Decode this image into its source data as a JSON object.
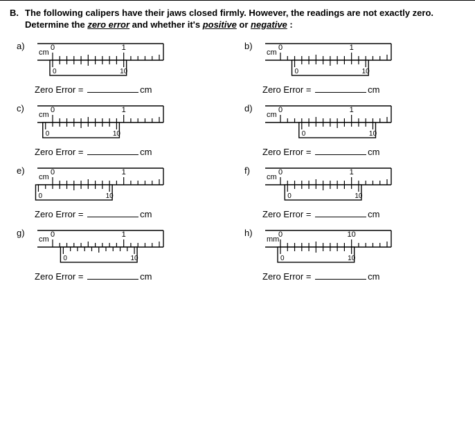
{
  "section_letter": "B.",
  "question_text_1": "The following calipers have their jaws closed firmly. However, the readings are not exactly zero.",
  "question_text_2": "Determine the ",
  "question_ul_1": "zero error",
  "question_text_3": " and whether it's ",
  "question_ul_2": "positive",
  "question_text_4": " or ",
  "question_ul_3": "negative",
  "question_text_5": " :",
  "answer_prefix": "Zero Error =",
  "items": [
    {
      "label": "a)",
      "main_scale": {
        "unit": "cm",
        "start": 0,
        "end": 1.5,
        "numbers": [
          "0",
          "1"
        ],
        "number_pos": [
          0,
          1
        ]
      },
      "vernier": {
        "offset_mm": 0.0,
        "length_mm": 1.0,
        "numbers": [
          "0",
          "10"
        ],
        "number_pos": [
          0,
          10
        ]
      },
      "answer_unit": "cm",
      "caliper_width": 190,
      "caliper_height": 58,
      "colors": {
        "stroke": "#000000",
        "fill": "#ffffff"
      }
    },
    {
      "label": "b)",
      "main_scale": {
        "unit": "cm",
        "start": 0,
        "end": 1.5,
        "numbers": [
          "0",
          "1"
        ],
        "number_pos": [
          0,
          1
        ]
      },
      "vernier": {
        "offset_mm": 0.2,
        "length_mm": 1.0,
        "numbers": [
          "0",
          "10"
        ],
        "number_pos": [
          0,
          10
        ]
      },
      "answer_unit": "cm",
      "caliper_width": 190,
      "caliper_height": 58,
      "colors": {
        "stroke": "#000000",
        "fill": "#ffffff"
      }
    },
    {
      "label": "c)",
      "main_scale": {
        "unit": "cm",
        "start": 0,
        "end": 1.5,
        "numbers": [
          "0",
          "1"
        ],
        "number_pos": [
          0,
          1
        ]
      },
      "vernier": {
        "offset_mm": -0.1,
        "length_mm": 1.0,
        "numbers": [
          "0",
          "10"
        ],
        "number_pos": [
          0,
          10
        ]
      },
      "answer_unit": "cm",
      "caliper_width": 190,
      "caliper_height": 58,
      "colors": {
        "stroke": "#000000",
        "fill": "#ffffff"
      }
    },
    {
      "label": "d)",
      "main_scale": {
        "unit": "cm",
        "start": 0,
        "end": 1.5,
        "numbers": [
          "0",
          "1"
        ],
        "number_pos": [
          0,
          1
        ]
      },
      "vernier": {
        "offset_mm": 0.3,
        "length_mm": 1.0,
        "numbers": [
          "0",
          "10"
        ],
        "number_pos": [
          0,
          10
        ]
      },
      "answer_unit": "cm",
      "caliper_width": 190,
      "caliper_height": 58,
      "colors": {
        "stroke": "#000000",
        "fill": "#ffffff"
      }
    },
    {
      "label": "e)",
      "main_scale": {
        "unit": "cm",
        "start": 0,
        "end": 1.5,
        "numbers": [
          "0",
          "1"
        ],
        "number_pos": [
          0,
          1
        ]
      },
      "vernier": {
        "offset_mm": -0.2,
        "length_mm": 1.0,
        "numbers": [
          "0",
          "10"
        ],
        "number_pos": [
          0,
          10
        ]
      },
      "answer_unit": "cm",
      "caliper_width": 190,
      "caliper_height": 58,
      "colors": {
        "stroke": "#000000",
        "fill": "#ffffff"
      }
    },
    {
      "label": "f)",
      "main_scale": {
        "unit": "cm",
        "start": 0,
        "end": 1.5,
        "numbers": [
          "0",
          "1"
        ],
        "number_pos": [
          0,
          1
        ]
      },
      "vernier": {
        "offset_mm": 0.1,
        "length_mm": 1.0,
        "numbers": [
          "0",
          "10"
        ],
        "number_pos": [
          0,
          10
        ]
      },
      "answer_unit": "cm",
      "caliper_width": 190,
      "caliper_height": 58,
      "colors": {
        "stroke": "#000000",
        "fill": "#ffffff"
      }
    },
    {
      "label": "g)",
      "main_scale": {
        "unit": "cm",
        "start": 0,
        "end": 1.5,
        "numbers": [
          "0",
          "1"
        ],
        "number_pos": [
          0,
          1
        ]
      },
      "vernier": {
        "offset_mm": 0.15,
        "length_mm": 1.0,
        "numbers": [
          "0",
          "10"
        ],
        "number_pos": [
          0,
          10
        ]
      },
      "answer_unit": "cm",
      "caliper_width": 190,
      "caliper_height": 58,
      "colors": {
        "stroke": "#000000",
        "fill": "#ffffff"
      }
    },
    {
      "label": "h)",
      "main_scale": {
        "unit": "mm",
        "start": 0,
        "end": 15,
        "numbers": [
          "0",
          "10"
        ],
        "number_pos": [
          0,
          1
        ]
      },
      "vernier": {
        "offset_mm": 0.0,
        "length_mm": 1.0,
        "numbers": [
          "0",
          "10"
        ],
        "number_pos": [
          0,
          10
        ]
      },
      "answer_unit": "cm",
      "caliper_width": 190,
      "caliper_height": 58,
      "colors": {
        "stroke": "#000000",
        "fill": "#ffffff"
      }
    }
  ]
}
